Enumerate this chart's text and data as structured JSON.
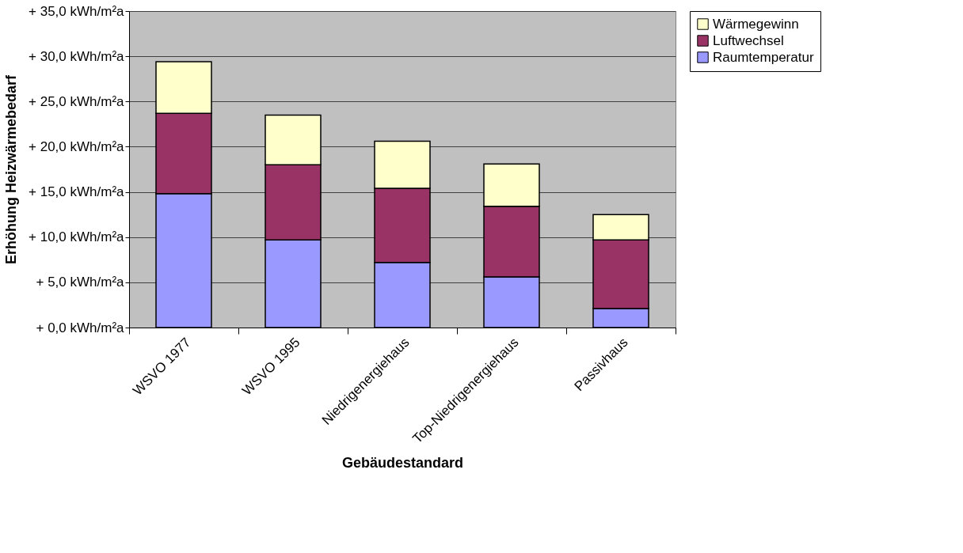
{
  "chart_data": {
    "type": "bar",
    "stacked": true,
    "xlabel": "Gebäudestandard",
    "ylabel": "Erhöhung Heizwärmebedarf",
    "categories": [
      "WSVO 1977",
      "WSVO 1995",
      "Niedrigenergiehaus",
      "Top-Niedrigenergiehaus",
      "Passivhaus"
    ],
    "series": [
      {
        "name": "Raumtemperatur",
        "color": "#9999ff",
        "values": [
          14.8,
          9.7,
          7.2,
          5.6,
          2.1
        ]
      },
      {
        "name": "Luftwechsel",
        "color": "#993366",
        "values": [
          8.9,
          8.3,
          8.2,
          7.8,
          7.6
        ]
      },
      {
        "name": "Wärmegewinn",
        "color": "#ffffcc",
        "values": [
          5.7,
          5.5,
          5.2,
          4.7,
          2.8
        ]
      }
    ],
    "ylim": [
      0,
      35
    ],
    "yticks": [
      {
        "value": 0,
        "label": "+ 0,0 kWh/m²a"
      },
      {
        "value": 5,
        "label": "+ 5,0 kWh/m²a"
      },
      {
        "value": 10,
        "label": "+ 10,0 kWh/m²a"
      },
      {
        "value": 15,
        "label": "+ 15,0 kWh/m²a"
      },
      {
        "value": 20,
        "label": "+ 20,0 kWh/m²a"
      },
      {
        "value": 25,
        "label": "+ 25,0 kWh/m²a"
      },
      {
        "value": 30,
        "label": "+ 30,0 kWh/m²a"
      },
      {
        "value": 35,
        "label": "+ 35,0 kWh/m²a"
      }
    ],
    "grid": "y",
    "legend": "right"
  }
}
